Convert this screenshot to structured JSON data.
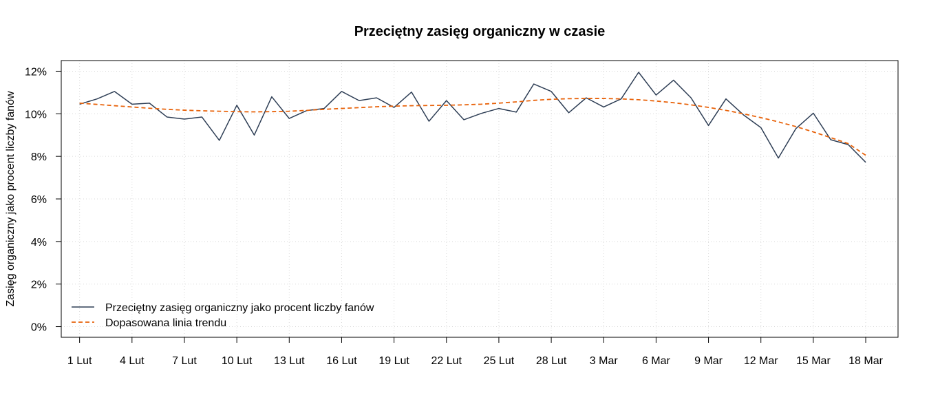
{
  "chart_data": {
    "type": "line",
    "title": "Przeciętny zasięg organiczny w czasie",
    "xlabel": "",
    "ylabel": "Zasięg organiczny jako procent liczby fanów",
    "x_tick_labels": [
      "1 Lut",
      "4 Lut",
      "7 Lut",
      "10 Lut",
      "13 Lut",
      "16 Lut",
      "19 Lut",
      "22 Lut",
      "25 Lut",
      "28 Lut",
      "3 Mar",
      "6 Mar",
      "9 Mar",
      "12 Mar",
      "15 Mar",
      "18 Mar"
    ],
    "x_tick_days": [
      0,
      3,
      6,
      9,
      12,
      15,
      18,
      21,
      24,
      27,
      30,
      33,
      36,
      39,
      42,
      45
    ],
    "xlim": [
      -1.05,
      46.85
    ],
    "y_ticks": [
      0,
      2,
      4,
      6,
      8,
      10,
      12
    ],
    "y_tick_labels": [
      "0%",
      "2%",
      "4%",
      "6%",
      "8%",
      "10%",
      "12%"
    ],
    "ylim": [
      -0.5,
      12.5
    ],
    "grid": true,
    "legend_position": "bottom-left",
    "series": [
      {
        "name": "Przeciętny zasięg organiczny jako procent liczby fanów",
        "color": "#2e3e55",
        "style": "solid",
        "values": [
          10.45,
          10.7,
          11.05,
          10.45,
          10.5,
          9.85,
          9.75,
          9.85,
          8.75,
          10.4,
          9.0,
          10.8,
          9.78,
          10.15,
          10.25,
          11.05,
          10.62,
          10.75,
          10.3,
          11.02,
          9.65,
          10.62,
          9.72,
          10.02,
          10.25,
          10.08,
          11.4,
          11.05,
          10.05,
          10.75,
          10.32,
          10.7,
          11.95,
          10.88,
          11.58,
          10.75,
          9.45,
          10.7,
          9.95,
          9.35,
          7.92,
          9.3,
          10.03,
          8.78,
          8.55,
          7.72
        ]
      },
      {
        "name": "Dopasowana linia trendu",
        "color": "#e8620a",
        "style": "dashed",
        "values": [
          10.5,
          10.44,
          10.38,
          10.32,
          10.26,
          10.21,
          10.17,
          10.14,
          10.12,
          10.1,
          10.09,
          10.1,
          10.12,
          10.16,
          10.21,
          10.25,
          10.29,
          10.33,
          10.36,
          10.38,
          10.39,
          10.4,
          10.42,
          10.45,
          10.5,
          10.56,
          10.63,
          10.68,
          10.71,
          10.72,
          10.72,
          10.7,
          10.66,
          10.6,
          10.52,
          10.42,
          10.3,
          10.16,
          10.0,
          9.82,
          9.62,
          9.4,
          9.15,
          8.88,
          8.6,
          8.05
        ]
      }
    ]
  }
}
